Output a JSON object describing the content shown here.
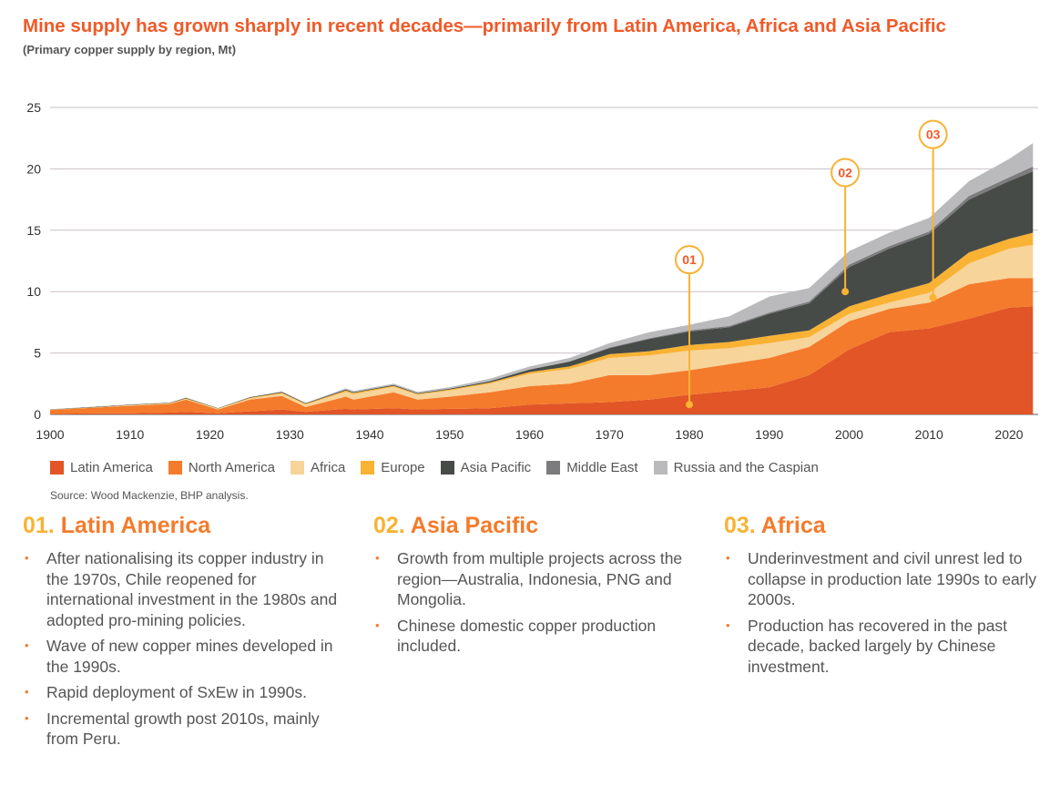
{
  "title": "Mine supply has grown sharply in recent decades—primarily from Latin America, Africa and Asia Pacific",
  "subtitle": "(Primary copper supply by region, Mt)",
  "source": "Source: Wood Mackenzie, BHP analysis.",
  "colors": {
    "title": "#F05A28",
    "axis": "#333333",
    "grid": "#c9c0c4",
    "annotation": "#F9B233"
  },
  "chart_data": {
    "type": "area",
    "stacked": true,
    "title": "Mine supply has grown sharply in recent decades—primarily from Latin America, Africa and Asia Pacific",
    "ylabel": "Primary copper supply by region, Mt",
    "xlim": [
      1900,
      2023
    ],
    "ylim": [
      0,
      25
    ],
    "xticks": [
      "1900",
      "1910",
      "1920",
      "1930",
      "1940",
      "1950",
      "1960",
      "1970",
      "1980",
      "1990",
      "2000",
      "2010",
      "2020"
    ],
    "yticks": [
      "0",
      "5",
      "10",
      "15",
      "20",
      "25"
    ],
    "grid": true,
    "legend": "bottom",
    "x": [
      1900,
      1905,
      1910,
      1915,
      1917,
      1921,
      1925,
      1929,
      1932,
      1937,
      1938,
      1943,
      1946,
      1950,
      1955,
      1960,
      1965,
      1970,
      1975,
      1980,
      1985,
      1990,
      1995,
      2000,
      2005,
      2010,
      2015,
      2020,
      2023
    ],
    "series": [
      {
        "name": "Latin America",
        "color": "#E15526",
        "values": [
          0.05,
          0.08,
          0.1,
          0.15,
          0.2,
          0.1,
          0.25,
          0.4,
          0.2,
          0.45,
          0.4,
          0.5,
          0.4,
          0.45,
          0.5,
          0.8,
          0.9,
          1.0,
          1.2,
          1.6,
          1.9,
          2.2,
          3.2,
          5.3,
          6.7,
          7.0,
          7.8,
          8.7,
          8.8
        ]
      },
      {
        "name": "North America",
        "color": "#F47B2B",
        "values": [
          0.3,
          0.45,
          0.6,
          0.7,
          1.0,
          0.3,
          0.95,
          1.1,
          0.4,
          1.0,
          0.8,
          1.3,
          0.8,
          1.0,
          1.3,
          1.5,
          1.6,
          2.2,
          2.0,
          2.0,
          2.2,
          2.4,
          2.3,
          2.3,
          1.9,
          2.1,
          2.8,
          2.4,
          2.3
        ]
      },
      {
        "name": "Africa",
        "color": "#F7D49A",
        "values": [
          0,
          0,
          0.02,
          0.03,
          0.05,
          0.05,
          0.1,
          0.2,
          0.2,
          0.4,
          0.45,
          0.45,
          0.4,
          0.5,
          0.7,
          1.0,
          1.2,
          1.4,
          1.6,
          1.6,
          1.3,
          1.2,
          0.8,
          0.6,
          0.5,
          0.8,
          1.7,
          2.4,
          2.7
        ]
      },
      {
        "name": "Europe",
        "color": "#F9B233",
        "values": [
          0.03,
          0.03,
          0.04,
          0.04,
          0.05,
          0.03,
          0.05,
          0.07,
          0.06,
          0.1,
          0.1,
          0.08,
          0.07,
          0.08,
          0.1,
          0.15,
          0.2,
          0.3,
          0.35,
          0.45,
          0.5,
          0.6,
          0.55,
          0.6,
          0.7,
          0.8,
          0.9,
          0.8,
          1.0
        ]
      },
      {
        "name": "Asia Pacific",
        "color": "#474B48",
        "values": [
          0.02,
          0.03,
          0.03,
          0.03,
          0.04,
          0.03,
          0.05,
          0.06,
          0.05,
          0.07,
          0.06,
          0.07,
          0.06,
          0.07,
          0.1,
          0.2,
          0.4,
          0.5,
          1.0,
          1.1,
          1.2,
          1.8,
          2.2,
          3.2,
          3.7,
          4.0,
          4.3,
          4.7,
          5.0
        ]
      },
      {
        "name": "Middle East",
        "color": "#7C7C7E",
        "values": [
          0,
          0,
          0,
          0,
          0,
          0,
          0,
          0,
          0,
          0,
          0,
          0,
          0,
          0,
          0,
          0,
          0,
          0.05,
          0.05,
          0.1,
          0.1,
          0.1,
          0.15,
          0.2,
          0.2,
          0.2,
          0.3,
          0.3,
          0.4
        ]
      },
      {
        "name": "Russia and the Caspian",
        "color": "#BABABC",
        "values": [
          0.02,
          0.02,
          0.03,
          0.03,
          0.04,
          0.01,
          0.02,
          0.04,
          0.04,
          0.1,
          0.1,
          0.1,
          0.1,
          0.12,
          0.2,
          0.25,
          0.3,
          0.35,
          0.5,
          0.45,
          0.8,
          1.3,
          1.1,
          1.1,
          1.1,
          1.1,
          1.2,
          1.5,
          1.9
        ]
      }
    ],
    "annotations": [
      {
        "label": "01",
        "year": 1980,
        "point": 0.8,
        "marker_y": 12.6
      },
      {
        "label": "02",
        "year": 1999.5,
        "point": 10.0,
        "marker_y": 19.7
      },
      {
        "label": "03",
        "year": 2010.5,
        "point": 9.5,
        "marker_y": 22.8
      }
    ]
  },
  "sections": [
    {
      "num": "01.",
      "name": "Latin America",
      "bullets": [
        "After nationalising its copper industry in the 1970s, Chile reopened for international investment in the 1980s and adopted pro-mining policies.",
        "Wave of new copper mines developed in the 1990s.",
        "Rapid deployment of SxEw in 1990s.",
        "Incremental growth post 2010s, mainly from Peru."
      ]
    },
    {
      "num": "02.",
      "name": "Asia Pacific",
      "bullets": [
        "Growth from multiple projects across the region—Australia, Indonesia, PNG and Mongolia.",
        "Chinese domestic copper production included."
      ]
    },
    {
      "num": "03.",
      "name": "Africa",
      "bullets": [
        "Underinvestment and civil unrest led to collapse in production late 1990s to early 2000s.",
        "Production has recovered in the past decade, backed largely by Chinese investment."
      ]
    }
  ]
}
